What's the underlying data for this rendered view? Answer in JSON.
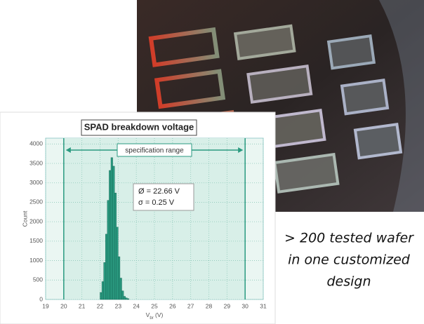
{
  "chart_data": {
    "type": "histogram",
    "title": "SPAD breakdown voltage",
    "xlabel": [
      "V",
      "br",
      " (V)"
    ],
    "ylabel": "Count",
    "bins": [
      22.0,
      22.1,
      22.2,
      22.3,
      22.4,
      22.5,
      22.6,
      22.7,
      22.8,
      22.9,
      23.0,
      23.1,
      23.2,
      23.3,
      23.4,
      23.5,
      23.6
    ],
    "counts": [
      180,
      460,
      950,
      1680,
      2550,
      3320,
      3650,
      3430,
      2740,
      1860,
      1100,
      550,
      220,
      80,
      40,
      20
    ],
    "color": "#2a9a80",
    "xlim": [
      19,
      31
    ],
    "xticks": [
      19,
      20,
      21,
      22,
      23,
      24,
      25,
      26,
      27,
      28,
      29,
      30,
      31
    ],
    "ylim": [
      0,
      4150
    ],
    "yticks": [
      0,
      500,
      1000,
      1500,
      2000,
      2500,
      3000,
      3500,
      4000
    ],
    "grid": true,
    "spec_range": [
      20,
      30
    ],
    "spec_label": "specification range",
    "stats": [
      "Ø = 22.66 V",
      "σ = 0.25 V"
    ]
  },
  "caption": [
    "> 200 tested wafer",
    "in one customized",
    "design"
  ]
}
